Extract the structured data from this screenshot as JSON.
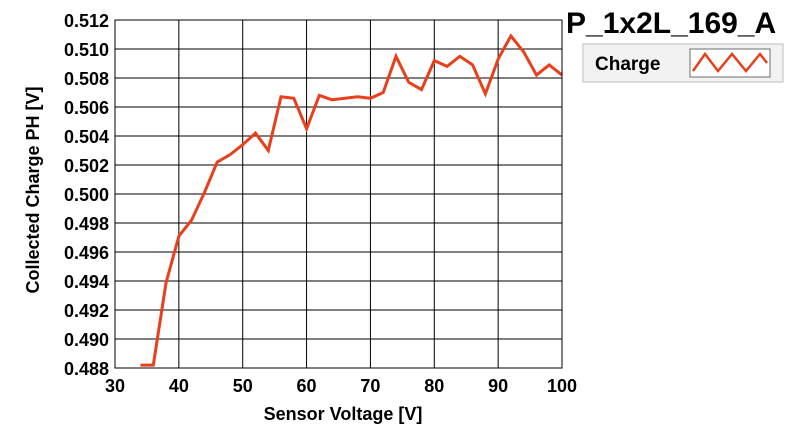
{
  "chart_data": {
    "type": "line",
    "title": "P_1x2L_169_A",
    "xlabel": "Sensor Voltage [V]",
    "ylabel": "Collected Charge PH [V]",
    "xlim": [
      30,
      100
    ],
    "ylim": [
      0.488,
      0.512
    ],
    "xticks": [
      30,
      40,
      50,
      60,
      70,
      80,
      90,
      100
    ],
    "xtick_labels": [
      "30",
      "40",
      "50",
      "60",
      "70",
      "80",
      "90",
      "100"
    ],
    "yticks": [
      0.488,
      0.49,
      0.492,
      0.494,
      0.496,
      0.498,
      0.5,
      0.502,
      0.504,
      0.506,
      0.508,
      0.51,
      0.512
    ],
    "ytick_labels": [
      "0.488",
      "0.490",
      "0.492",
      "0.494",
      "0.496",
      "0.498",
      "0.500",
      "0.502",
      "0.504",
      "0.506",
      "0.508",
      "0.510",
      "0.512"
    ],
    "grid": true,
    "legend_position": "top-right",
    "series": [
      {
        "name": "Charge",
        "color": "#e8401c",
        "x": [
          34,
          36,
          38,
          40,
          42,
          44,
          46,
          48,
          50,
          52,
          54,
          56,
          58,
          60,
          62,
          64,
          66,
          68,
          70,
          72,
          74,
          76,
          78,
          80,
          82,
          84,
          86,
          88,
          90,
          92,
          94,
          96,
          98,
          100
        ],
        "y": [
          0.4882,
          0.4882,
          0.4939,
          0.4971,
          0.4982,
          0.5001,
          0.5022,
          0.5027,
          0.5034,
          0.5042,
          0.503,
          0.5067,
          0.5066,
          0.5045,
          0.5068,
          0.5065,
          0.5066,
          0.5067,
          0.5066,
          0.507,
          0.5095,
          0.5077,
          0.5072,
          0.5092,
          0.5088,
          0.5095,
          0.5089,
          0.5069,
          0.5093,
          0.5109,
          0.5098,
          0.5082,
          0.5089,
          0.5082
        ]
      }
    ]
  }
}
